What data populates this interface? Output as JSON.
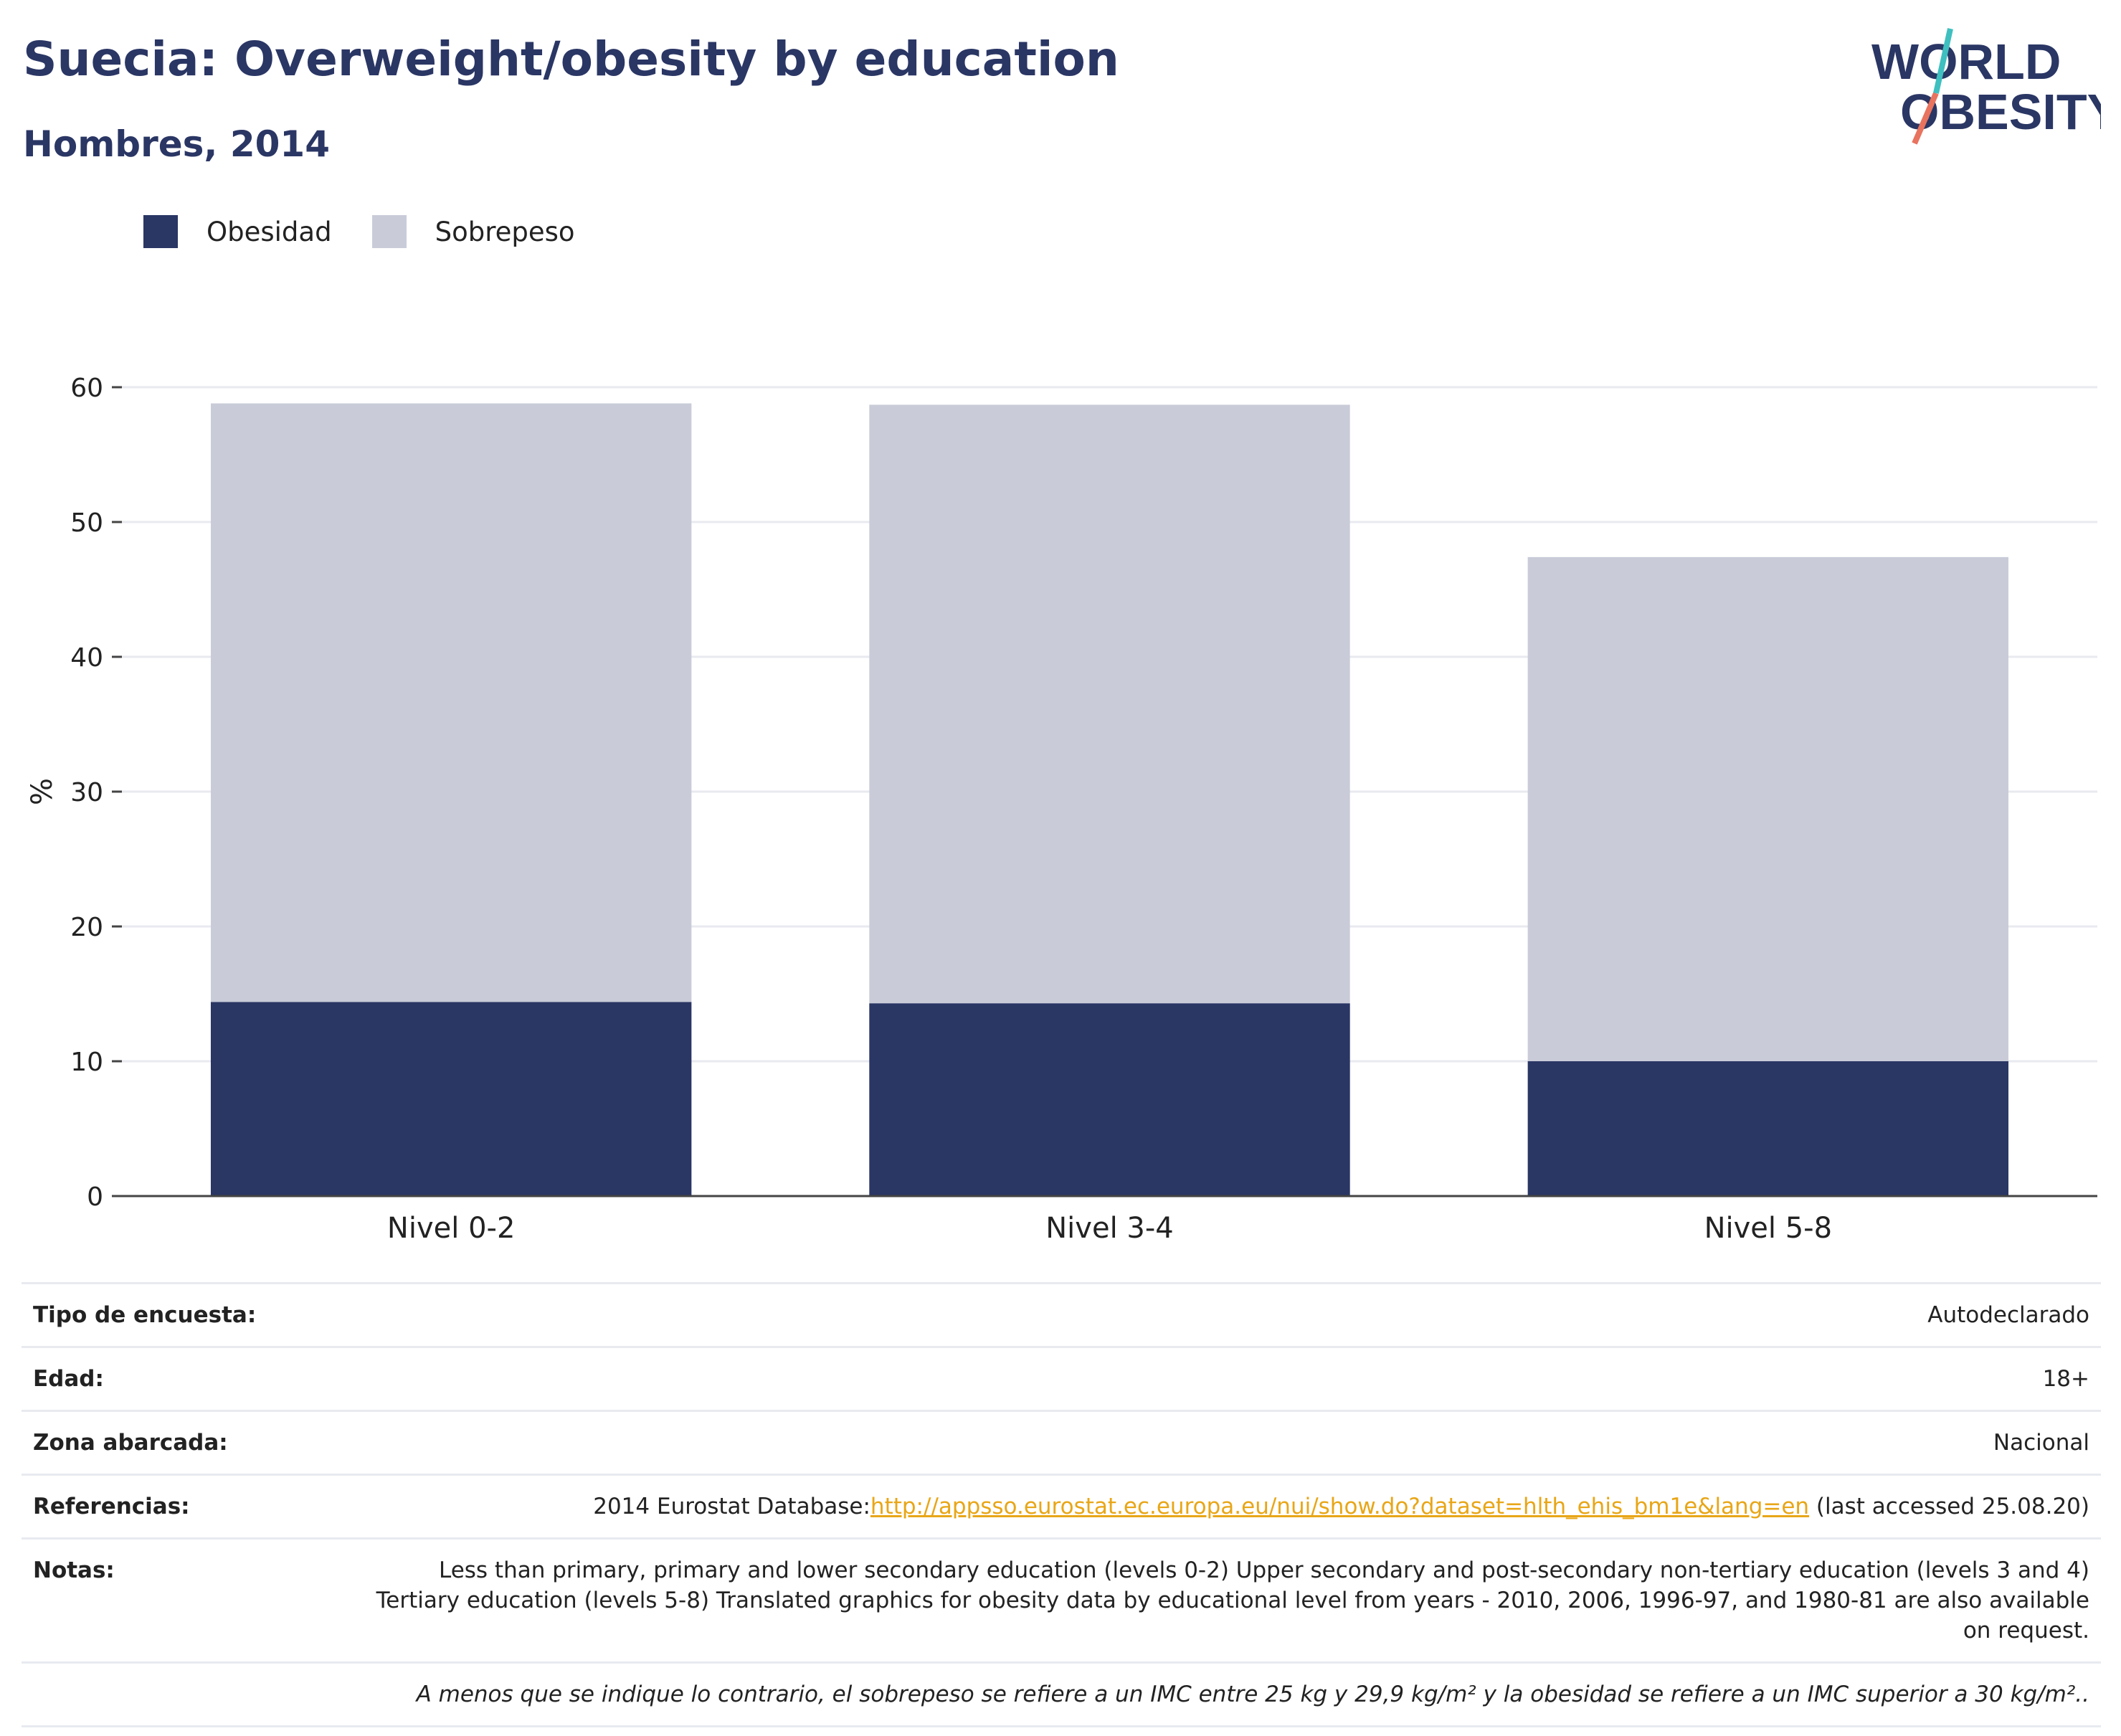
{
  "header": {
    "title": "Suecia: Overweight/obesity by education",
    "subtitle": "Hombres, 2014"
  },
  "logo": {
    "line1": "WORLD",
    "line2": "OBESITY"
  },
  "colors": {
    "obesity": "#2a3664",
    "overweight": "#c9ccd8",
    "accent_teal": "#3fbfbf",
    "accent_coral": "#e8735f",
    "link": "#e8a617"
  },
  "legend": [
    {
      "label": "Obesidad",
      "color": "#2a3664"
    },
    {
      "label": "Sobrepeso",
      "color": "#c9ccd8"
    }
  ],
  "chart_data": {
    "type": "bar",
    "stacked": true,
    "categories": [
      "Nivel 0-2",
      "Nivel 3-4",
      "Nivel 5-8"
    ],
    "series": [
      {
        "name": "Obesidad",
        "values": [
          14.4,
          14.3,
          10.0
        ]
      },
      {
        "name": "Sobrepeso",
        "values": [
          44.4,
          44.4,
          37.4
        ]
      }
    ],
    "ylabel": "%",
    "ylim": [
      0,
      60
    ],
    "yticks": [
      0,
      10,
      20,
      30,
      40,
      50,
      60
    ],
    "grid": true,
    "legend_position": "top-left"
  },
  "meta": {
    "survey_type": {
      "label": "Tipo de encuesta:",
      "value": "Autodeclarado"
    },
    "age": {
      "label": "Edad:",
      "value": "18+"
    },
    "area": {
      "label": "Zona abarcada:",
      "value": "Nacional"
    },
    "references": {
      "label": "Referencias:",
      "prefix": "2014 Eurostat Database:",
      "link": "http://appsso.eurostat.ec.europa.eu/nui/show.do?dataset=hlth_ehis_bm1e&lang=en",
      "suffix": " (last accessed 25.08.20)"
    },
    "notes": {
      "label": "Notas:",
      "value": "Less than primary, primary and lower secondary education (levels 0-2) Upper secondary and post-secondary non-tertiary education (levels 3 and 4) Tertiary education (levels 5-8) Translated graphics for obesity data by educational level from years - 2010, 2006, 1996-97, and 1980-81 are also available on request."
    },
    "footnote": "A menos que se indique lo contrario, el sobrepeso se refiere a un IMC entre 25 kg y 29,9 kg/m² y la obesidad se refiere a un IMC superior a 30 kg/m².."
  }
}
